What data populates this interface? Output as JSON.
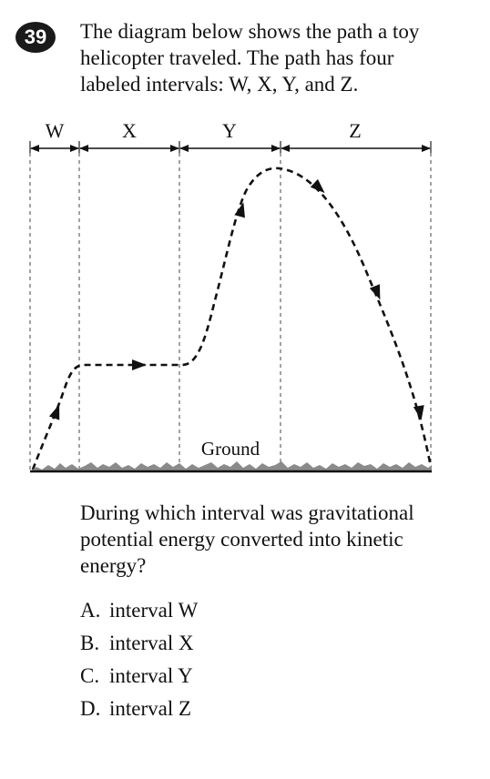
{
  "question": {
    "number": "39",
    "stem_lines": [
      "The diagram below shows the path a toy",
      "helicopter traveled. The path has four",
      "labeled intervals: W, X, Y, and Z."
    ],
    "prompt_lines": [
      "During which interval was gravitational",
      "potential energy converted into kinetic",
      "energy?"
    ]
  },
  "diagram": {
    "interval_labels": [
      "W",
      "X",
      "Y",
      "Z"
    ],
    "ground_label": "Ground"
  },
  "choices": [
    {
      "letter": "A.",
      "text": "interval W"
    },
    {
      "letter": "B.",
      "text": "interval X"
    },
    {
      "letter": "C.",
      "text": "interval Y"
    },
    {
      "letter": "D.",
      "text": "interval Z"
    }
  ]
}
